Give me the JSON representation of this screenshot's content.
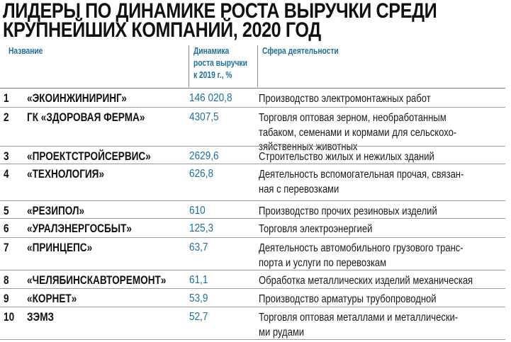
{
  "title": {
    "line1": "ЛИДЕРЫ ПО ДИНАМИКЕ РОСТА ВЫРУЧКИ СРЕДИ",
    "line2": "КРУПНЕЙШИХ КОМПАНИЙ, 2020 ГОД"
  },
  "colors": {
    "accent": "#1d6f99",
    "divider": "#9a9a9a"
  },
  "table": {
    "headers": {
      "name": "Название",
      "growth": [
        "Динамика",
        "роста выручки",
        "к 2019 г., %"
      ],
      "activity": "Сфера деятельности"
    },
    "rows": [
      {
        "rank": "1",
        "name": "«ЭКОИНЖИНИРИНГ»",
        "growth": "146 020,8",
        "activity": "Производство электромонтажных работ"
      },
      {
        "rank": "2",
        "name": "ГК «ЗДОРОВАЯ ФЕРМА»",
        "growth": "4307,5",
        "activity": "Торговля оптовая зерном, необработанным\nтабаком, семенами и кормами для сельскохо-\nзяйственных животных"
      },
      {
        "rank": "3",
        "name": "«ПРОЕКТСТРОЙСЕРВИС»",
        "growth": "2629,6",
        "activity": "Строительство жилых и нежилых зданий"
      },
      {
        "rank": "4",
        "name": "«ТЕХНОЛОГИЯ»",
        "growth": "626,8",
        "activity": "Деятельность вспомогательная прочая, связан-\nная с перевозками"
      },
      {
        "rank": "5",
        "name": "«РЕЗИПОЛ»",
        "growth": "610",
        "activity": "Производство прочих резиновых изделий"
      },
      {
        "rank": "6",
        "name": "«УРАЛЭНЕРГОСБЫТ»",
        "growth": "125,3",
        "activity": "Торговля электроэнергией"
      },
      {
        "rank": "7",
        "name": "«ПРИНЦЕПС»",
        "growth": "63,7",
        "activity": "Деятельность автомобильного грузового транс-\nпорта и услуги по перевозкам"
      },
      {
        "rank": "8",
        "name": "«ЧЕЛЯБИНСКАВТОРЕМОНТ»",
        "growth": "61,1",
        "activity": "Обработка металлических изделий механическая"
      },
      {
        "rank": "9",
        "name": "«КОРНЕТ»",
        "growth": "53,9",
        "activity": "Производство арматуры трубопроводной"
      },
      {
        "rank": "10",
        "name": "ЗЭМЗ",
        "growth": "52,7",
        "activity": "Торговля оптовая металлами и металлически-\nми рудами"
      }
    ]
  }
}
